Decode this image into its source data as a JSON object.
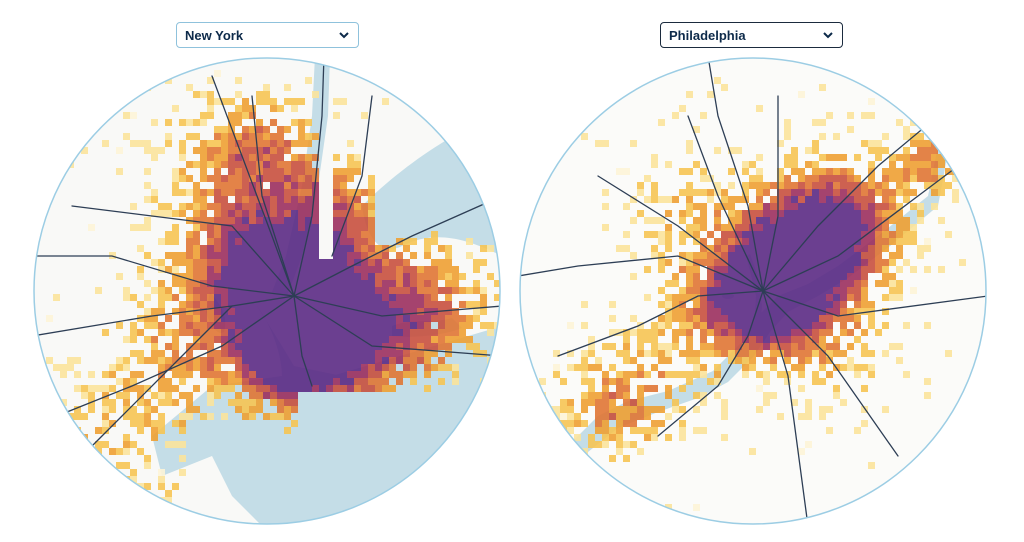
{
  "left_map": {
    "city_select": {
      "selected": "New York"
    },
    "colors": {
      "water": "#c4dde7",
      "land": "#f9f9f7",
      "outline": "#9ccde4",
      "transit": "#2d3e55"
    }
  },
  "right_map": {
    "city_select": {
      "selected": "Philadelphia"
    },
    "colors": {
      "water": "#c4dde7",
      "land": "#fbfbf9",
      "outline": "#9ccde4",
      "transit": "#2d3e55"
    }
  },
  "density_colors": [
    "#fdf4d7",
    "#fbe39b",
    "#f6c453",
    "#eea033",
    "#e07634",
    "#c8503e",
    "#9b2f5e",
    "#5b2a84"
  ],
  "icons": {
    "dropdown": "chevron-down-icon"
  }
}
